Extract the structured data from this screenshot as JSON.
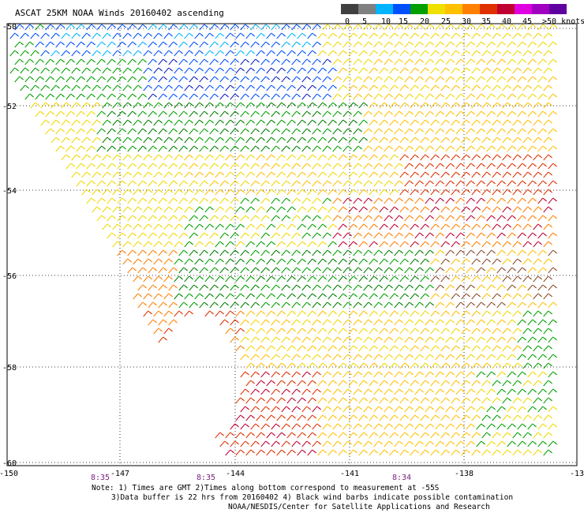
{
  "title": "ASCAT 25KM NOAA Winds 20160402 ascending",
  "legend": {
    "labels": [
      "0",
      "5",
      "10",
      "15",
      "20",
      "25",
      "30",
      "35",
      "40",
      "45",
      ">50 knots"
    ],
    "colors": [
      "#404040",
      "#808080",
      "#00b4ff",
      "#0050ff",
      "#00a000",
      "#f0e000",
      "#ffc000",
      "#ff8000",
      "#e03000",
      "#c00030",
      "#e000e0",
      "#a000c0",
      "#6000a0"
    ]
  },
  "latitude_labels": [
    "-50",
    "-52",
    "-54",
    "-56",
    "-58",
    "-60"
  ],
  "longitude_labels": [
    "-150",
    "-147",
    "-144",
    "-141",
    "-138",
    "-13"
  ],
  "time_labels": [
    "8:35",
    "8:35",
    "8:34"
  ],
  "notes": {
    "line1": "Note: 1) Times are GMT 2)Times along bottom correspond to measurement at -55S",
    "line2": "3)Data buffer is 22 hrs from 20160402 4) Black wind barbs indicate possible contamination",
    "line3": "NOAA/NESDIS/Center for Satellite Applications and Research"
  }
}
